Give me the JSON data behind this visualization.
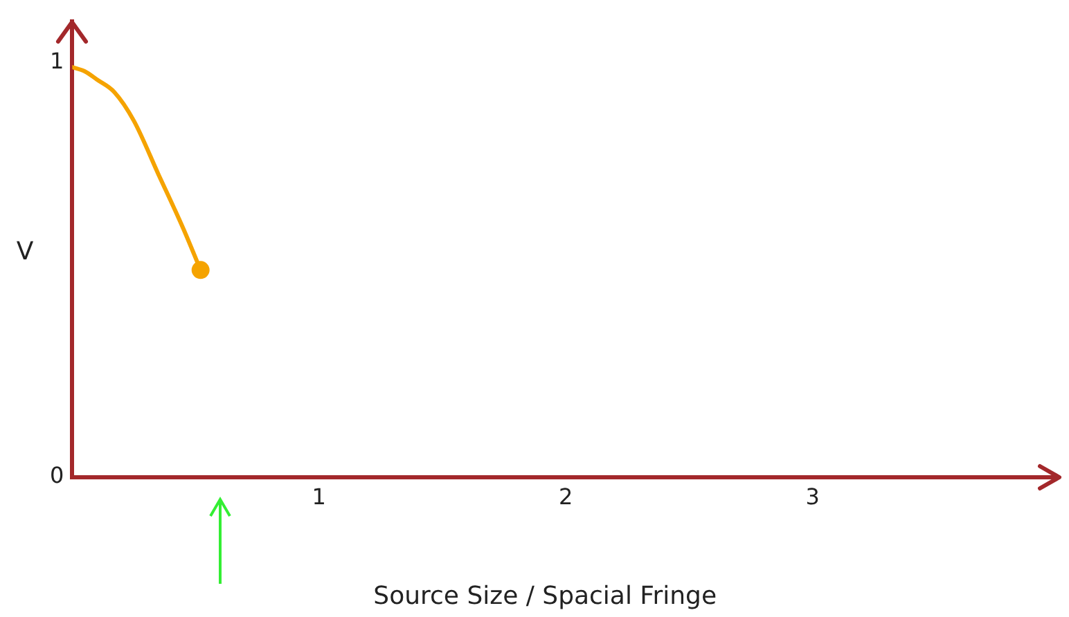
{
  "chart_data": {
    "type": "line",
    "xlabel": "Source Size / Spacial Fringe",
    "ylabel": "V",
    "xlim": [
      0,
      4.0
    ],
    "ylim": [
      0,
      1.1
    ],
    "xticks": [
      1,
      2,
      3
    ],
    "yticks": [
      0,
      1
    ],
    "grid": false,
    "legend": false,
    "series": [
      {
        "color": "#f5a300",
        "x": [
          0,
          0.05,
          0.1,
          0.17,
          0.25,
          0.35,
          0.45,
          0.52
        ],
        "values": [
          0.99,
          0.98,
          0.96,
          0.93,
          0.86,
          0.73,
          0.6,
          0.5
        ]
      },
      {
        "type": "scatter",
        "color": "#f5a300",
        "x": [
          0.52
        ],
        "values": [
          0.5
        ]
      }
    ]
  }
}
